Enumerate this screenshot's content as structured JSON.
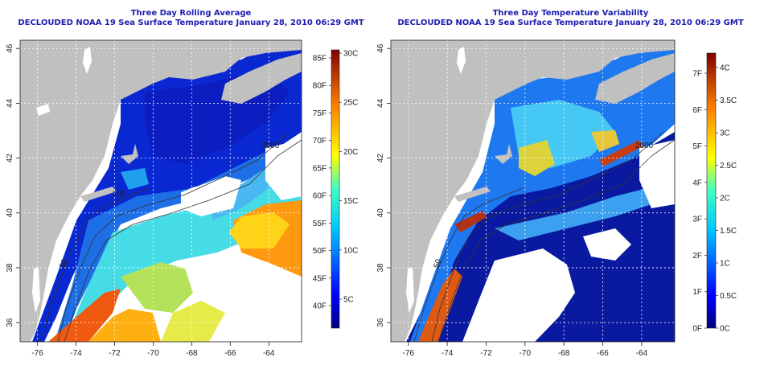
{
  "left_panel": {
    "title_line1": "Three Day Rolling Average",
    "title_line2": "DECLOUDED NOAA 19 Sea Surface Temperature January 28, 2010 06:29 GMT",
    "colorbar": {
      "f_labels": [
        "85F",
        "80F",
        "75F",
        "70F",
        "65F",
        "60F",
        "55F",
        "50F",
        "45F",
        "40F"
      ],
      "c_labels": [
        "30C",
        "25C",
        "20C",
        "15C",
        "10C",
        "5C"
      ]
    }
  },
  "right_panel": {
    "title_line1": "Three Day Temperature Variability",
    "title_line2": "DECLOUDED NOAA 19 Sea Surface Temperature January 28, 2010 06:29 GMT",
    "colorbar": {
      "f_labels": [
        "7F",
        "6F",
        "5F",
        "4F",
        "3F",
        "2F",
        "1F",
        "0F"
      ],
      "c_labels": [
        "4C",
        "3.5C",
        "3C",
        "2.5C",
        "2C",
        "1.5C",
        "1C",
        "0.5C",
        "0C"
      ]
    }
  },
  "map": {
    "lon_ticks": [
      "-76",
      "-74",
      "-72",
      "-70",
      "-68",
      "-66",
      "-64"
    ],
    "lat_ticks": [
      "46",
      "44",
      "42",
      "40",
      "38",
      "36"
    ],
    "isobath_labels": [
      "2000",
      "200",
      "50"
    ]
  },
  "colors": {
    "title": "#1c1cb4",
    "land": "#c0c0c0",
    "cloud": "#ffffff",
    "grid": "#ffffff"
  }
}
